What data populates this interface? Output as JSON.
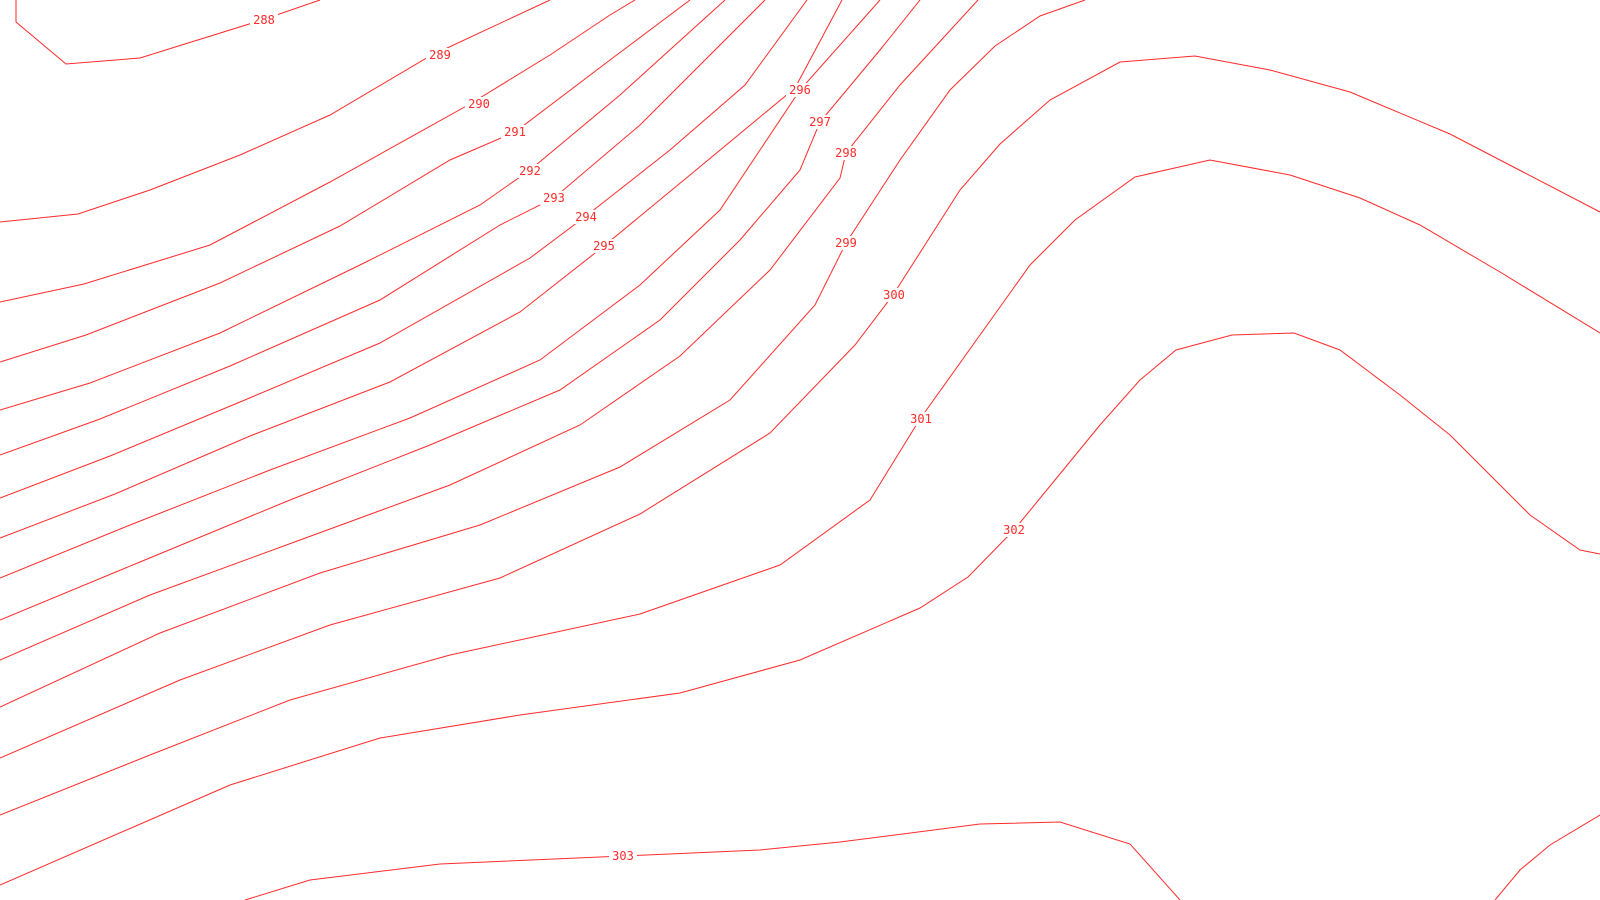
{
  "map": {
    "type": "contour map",
    "line_color": "#ff2a2a",
    "background": "#ffffff",
    "contours": [
      {
        "value": "288",
        "label": "288"
      },
      {
        "value": "289",
        "label": "289"
      },
      {
        "value": "290",
        "label": "290"
      },
      {
        "value": "291",
        "label": "291"
      },
      {
        "value": "292",
        "label": "292"
      },
      {
        "value": "293",
        "label": "293"
      },
      {
        "value": "294",
        "label": "294"
      },
      {
        "value": "295",
        "label": "295"
      },
      {
        "value": "296",
        "label": "296"
      },
      {
        "value": "297",
        "label": "297"
      },
      {
        "value": "298",
        "label": "298"
      },
      {
        "value": "299",
        "label": "299"
      },
      {
        "value": "300",
        "label": "300"
      },
      {
        "value": "301",
        "label": "301"
      },
      {
        "value": "302",
        "label": "302"
      },
      {
        "value": "303",
        "label": "303"
      }
    ]
  }
}
